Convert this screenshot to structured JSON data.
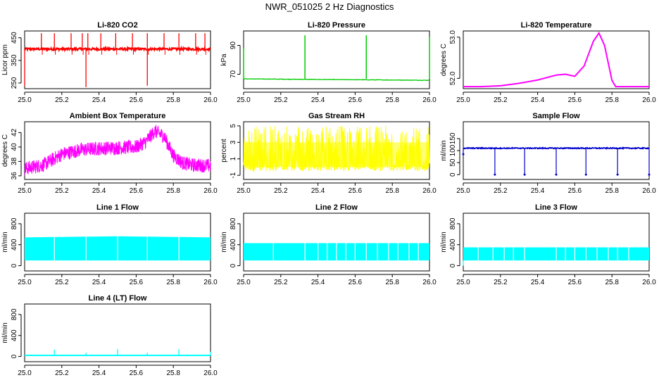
{
  "page": {
    "title": "NWR_051025  2 Hz Diagnostics"
  },
  "chart_data": [
    {
      "type": "line",
      "title": "Li-820 CO2",
      "xlabel": "",
      "ylabel": "Licor ppm",
      "xlim": [
        25.0,
        26.0
      ],
      "ylim": [
        225,
        480
      ],
      "x_ticks": [
        "25.0",
        "25.2",
        "25.4",
        "25.6",
        "25.8",
        "26.0"
      ],
      "y_ticks": [
        250,
        350,
        450
      ],
      "color": "#ff0000",
      "series": [
        {
          "name": "CO2",
          "baseline": 400,
          "spike_high": 470,
          "spikes_x": [
            25.09,
            25.16,
            25.25,
            25.31,
            25.34,
            25.41,
            25.49,
            25.58,
            25.66,
            25.75,
            25.83,
            25.92,
            25.97
          ],
          "dips": [
            [
              25.0,
              238
            ],
            [
              25.33,
              232
            ],
            [
              25.66,
              238
            ]
          ]
        }
      ]
    },
    {
      "type": "line",
      "title": "Li-820 Pressure",
      "xlabel": "",
      "ylabel": "kPa",
      "xlim": [
        25.0,
        26.0
      ],
      "ylim": [
        60,
        100
      ],
      "x_ticks": [
        "25.0",
        "25.2",
        "25.4",
        "25.6",
        "25.8",
        "26.0"
      ],
      "y_ticks": [
        70,
        90
      ],
      "color": "#00cc00",
      "series": [
        {
          "name": "Pressure",
          "start": 66.8,
          "end": 65.8,
          "spikes": [
            [
              25.0,
              88
            ],
            [
              25.33,
              97
            ],
            [
              25.66,
              97
            ],
            [
              26.0,
              96
            ]
          ]
        }
      ]
    },
    {
      "type": "line",
      "title": "Li-820 Temperature",
      "xlabel": "",
      "ylabel": "degrees C",
      "xlim": [
        25.0,
        26.0
      ],
      "ylim": [
        51.75,
        53.15
      ],
      "x_ticks": [
        "25.0",
        "25.2",
        "25.4",
        "25.6",
        "25.8",
        "26.0"
      ],
      "y_ticks": [
        52.0,
        53.0
      ],
      "color": "#ff00ff",
      "series": [
        {
          "name": "Temperature",
          "x": [
            25.0,
            25.1,
            25.2,
            25.3,
            25.4,
            25.5,
            25.55,
            25.6,
            25.65,
            25.7,
            25.73,
            25.76,
            25.8,
            25.82,
            26.0
          ],
          "y": [
            51.8,
            51.8,
            51.82,
            51.88,
            51.96,
            52.08,
            52.1,
            52.05,
            52.3,
            52.9,
            53.1,
            52.8,
            51.95,
            51.8,
            51.8
          ]
        }
      ]
    },
    {
      "type": "line",
      "title": "Ambient Box Temperature",
      "xlabel": "",
      "ylabel": "degrees C",
      "xlim": [
        25.0,
        26.0
      ],
      "ylim": [
        35.5,
        43.5
      ],
      "x_ticks": [
        "25.0",
        "25.2",
        "25.4",
        "25.6",
        "25.8",
        "26.0"
      ],
      "y_ticks": [
        36,
        38,
        40,
        42
      ],
      "color": "#ff00ff",
      "series": [
        {
          "name": "Box temperature",
          "x": [
            25.0,
            25.1,
            25.2,
            25.3,
            25.4,
            25.5,
            25.6,
            25.65,
            25.7,
            25.75,
            25.8,
            25.85,
            25.9,
            26.0
          ],
          "y": [
            37.0,
            37.5,
            39.0,
            39.6,
            39.8,
            39.9,
            40.0,
            40.7,
            42.2,
            41.5,
            38.8,
            37.8,
            37.5,
            37.4
          ],
          "noise": 1.5
        }
      ]
    },
    {
      "type": "line",
      "title": "Gas Stream RH",
      "xlabel": "",
      "ylabel": "percent",
      "xlim": [
        25.0,
        26.0
      ],
      "ylim": [
        -1.5,
        5.5
      ],
      "x_ticks": [
        "25.0",
        "25.2",
        "25.4",
        "25.6",
        "25.8",
        "26.0"
      ],
      "y_ticks": [
        -1,
        1,
        3,
        5
      ],
      "color": "#ffff00",
      "series": [
        {
          "name": "RH",
          "low": -0.5,
          "high": 5.0,
          "band_low": 0.0,
          "band_high": 3.0
        }
      ]
    },
    {
      "type": "line",
      "title": "Sample Flow",
      "xlabel": "",
      "ylabel": "ml/min",
      "xlim": [
        25.0,
        26.0
      ],
      "ylim": [
        -20,
        220
      ],
      "x_ticks": [
        "25.0",
        "25.2",
        "25.4",
        "25.6",
        "25.8",
        "26.0"
      ],
      "y_ticks": [
        0,
        50,
        100,
        150
      ],
      "color": "#0000cc",
      "series": [
        {
          "name": "Sample flow",
          "baseline": 110,
          "dips_x": [
            25.0,
            25.17,
            25.33,
            25.5,
            25.66,
            25.83,
            26.0
          ],
          "dips_y": [
            85,
            0,
            0,
            0,
            0,
            0,
            0
          ]
        }
      ]
    },
    {
      "type": "area",
      "title": "Line 1 Flow",
      "xlabel": "",
      "ylabel": "ml/min",
      "xlim": [
        25.0,
        26.0
      ],
      "ylim": [
        -100,
        1000
      ],
      "x_ticks": [
        "25.0",
        "25.2",
        "25.4",
        "25.6",
        "25.8",
        "26.0"
      ],
      "y_ticks": [
        0,
        400,
        800
      ],
      "color": "#00ffff",
      "series": [
        {
          "name": "Line 1",
          "low": 100,
          "top_x": [
            25.0,
            25.5,
            26.0
          ],
          "top_y": [
            540,
            560,
            540
          ],
          "gaps_x": [
            25.16,
            25.33,
            25.5,
            25.66,
            25.83
          ]
        }
      ]
    },
    {
      "type": "area",
      "title": "Line 2 Flow",
      "xlabel": "",
      "ylabel": "ml/min",
      "xlim": [
        25.0,
        26.0
      ],
      "ylim": [
        -100,
        1000
      ],
      "x_ticks": [
        "25.0",
        "25.2",
        "25.4",
        "25.6",
        "25.8",
        "26.0"
      ],
      "y_ticks": [
        0,
        400,
        800
      ],
      "color": "#00ffff",
      "series": [
        {
          "name": "Line 2",
          "low": 100,
          "top_x": [
            25.0,
            26.0
          ],
          "top_y": [
            430,
            430
          ],
          "gaps_x": [
            25.16,
            25.33,
            25.4,
            25.45,
            25.5,
            25.55,
            25.6,
            25.66,
            25.72,
            25.78,
            25.83,
            25.89,
            25.94
          ]
        }
      ]
    },
    {
      "type": "area",
      "title": "Line 3 Flow",
      "xlabel": "",
      "ylabel": "ml/min",
      "xlim": [
        25.0,
        26.0
      ],
      "ylim": [
        -100,
        1000
      ],
      "x_ticks": [
        "25.0",
        "25.2",
        "25.4",
        "25.6",
        "25.8",
        "26.0"
      ],
      "y_ticks": [
        0,
        400,
        800
      ],
      "color": "#00ffff",
      "series": [
        {
          "name": "Line 3",
          "low": 100,
          "top_x": [
            25.0,
            26.0
          ],
          "top_y": [
            350,
            350
          ],
          "gaps_x": [
            25.08,
            25.16,
            25.22,
            25.27,
            25.33,
            25.5,
            25.55,
            25.6,
            25.66,
            25.72,
            25.78,
            25.83,
            25.89
          ]
        }
      ]
    },
    {
      "type": "line",
      "title": "Line 4 (LT) Flow",
      "xlabel": "",
      "ylabel": "ml/min",
      "xlim": [
        25.0,
        26.0
      ],
      "ylim": [
        -100,
        1000
      ],
      "x_ticks": [
        "25.0",
        "25.2",
        "25.4",
        "25.6",
        "25.8",
        "26.0"
      ],
      "y_ticks": [
        0,
        400,
        800
      ],
      "color": "#00ffff",
      "series": [
        {
          "name": "Line 4 (LT)",
          "baseline": 20,
          "spikes": [
            [
              25.16,
              130
            ],
            [
              25.33,
              70
            ],
            [
              25.5,
              140
            ],
            [
              25.66,
              75
            ],
            [
              25.83,
              140
            ],
            [
              26.0,
              90
            ]
          ]
        }
      ]
    }
  ]
}
